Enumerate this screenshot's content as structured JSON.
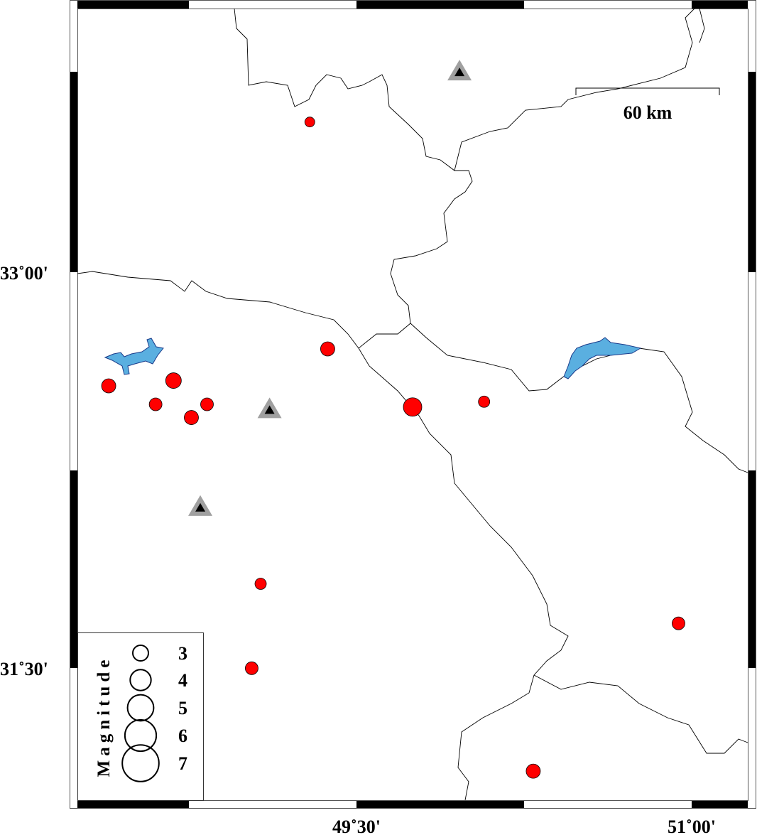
{
  "map": {
    "extent": {
      "lon": [
        48.25,
        51.25
      ],
      "lat": [
        31.0,
        34.0
      ]
    },
    "lon_ticks": [
      {
        "value": 49.5,
        "label": "49˚30'"
      },
      {
        "value": 51.0,
        "label": "51˚00'"
      }
    ],
    "lat_ticks": [
      {
        "value": 33.0,
        "label": "33˚00'"
      },
      {
        "value": 31.5,
        "label": "31˚30'"
      }
    ],
    "scale_bar": {
      "label": "60 km"
    },
    "colors": {
      "earthquake": "#ff0000",
      "lake": "#5aafe0",
      "volcano_outer": "#a0a0a0",
      "volcano_inner": "#000000",
      "border": "#000000"
    }
  },
  "earthquakes": [
    {
      "lon": 49.29,
      "lat": 33.57,
      "mag": 3.5
    },
    {
      "lon": 49.37,
      "lat": 32.71,
      "mag": 5
    },
    {
      "lon": 48.39,
      "lat": 32.57,
      "mag": 5
    },
    {
      "lon": 48.68,
      "lat": 32.59,
      "mag": 5.5
    },
    {
      "lon": 48.6,
      "lat": 32.5,
      "mag": 4.5
    },
    {
      "lon": 48.83,
      "lat": 32.5,
      "mag": 4.5
    },
    {
      "lon": 48.76,
      "lat": 32.45,
      "mag": 5
    },
    {
      "lon": 49.75,
      "lat": 32.49,
      "mag": 6.5
    },
    {
      "lon": 50.07,
      "lat": 32.51,
      "mag": 4
    },
    {
      "lon": 49.07,
      "lat": 31.82,
      "mag": 4
    },
    {
      "lon": 50.94,
      "lat": 31.67,
      "mag": 4.5
    },
    {
      "lon": 49.03,
      "lat": 31.5,
      "mag": 4.5
    },
    {
      "lon": 50.29,
      "lat": 31.11,
      "mag": 5
    }
  ],
  "stations": [
    {
      "lon": 49.96,
      "lat": 33.76
    },
    {
      "lon": 49.11,
      "lat": 32.48
    },
    {
      "lon": 48.8,
      "lat": 32.11
    }
  ],
  "legend": {
    "title": "Magnitude",
    "items": [
      {
        "mag": 3,
        "label": "3"
      },
      {
        "mag": 4,
        "label": "4"
      },
      {
        "mag": 5,
        "label": "5"
      },
      {
        "mag": 6,
        "label": "6"
      },
      {
        "mag": 7,
        "label": "7"
      }
    ]
  }
}
